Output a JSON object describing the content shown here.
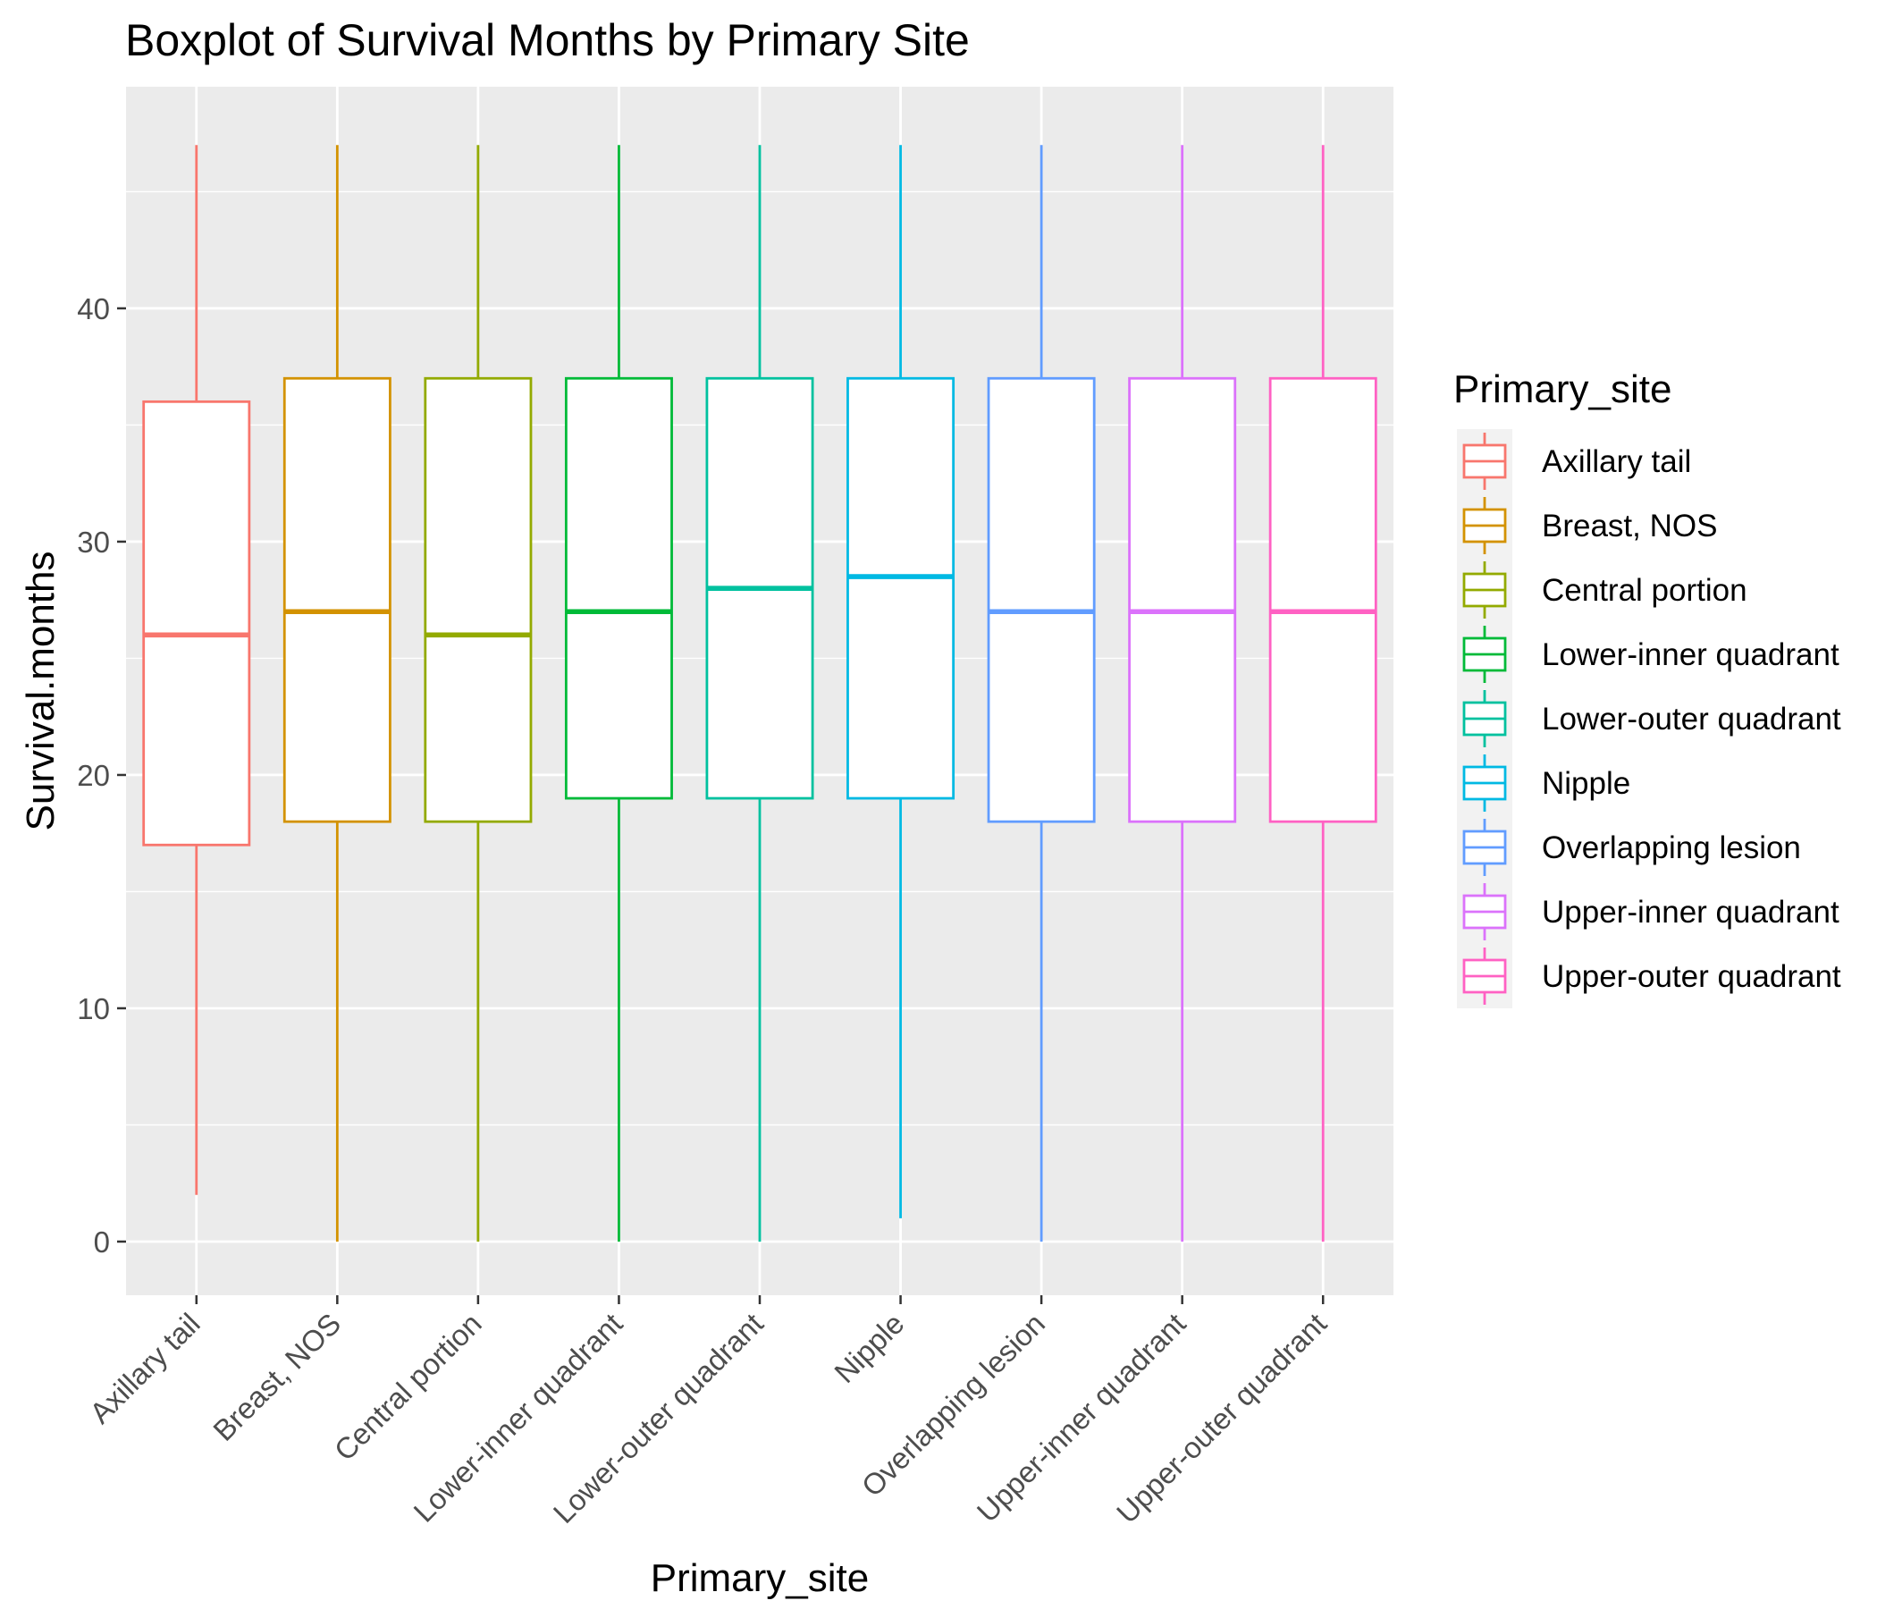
{
  "chart_data": {
    "type": "boxplot",
    "title": "Boxplot of Survival Months by Primary Site",
    "xlabel": "Primary_site",
    "ylabel": "Survival.months",
    "ylim": [
      -2.3,
      49.5
    ],
    "yticks": [
      0,
      10,
      20,
      30,
      40
    ],
    "grid": true,
    "legend": {
      "title": "Primary_site",
      "position": "right"
    },
    "categories": [
      "Axillary tail",
      "Breast, NOS",
      "Central portion",
      "Lower-inner quadrant",
      "Lower-outer quadrant",
      "Nipple",
      "Overlapping lesion",
      "Upper-inner quadrant",
      "Upper-outer quadrant"
    ],
    "colors": [
      "#F8766D",
      "#D39200",
      "#93AA00",
      "#00BA38",
      "#00C19F",
      "#00B9E3",
      "#619CFF",
      "#DB72FB",
      "#FF61C3"
    ],
    "boxes": [
      {
        "min": 2,
        "q1": 17,
        "median": 26,
        "q3": 36,
        "max": 47
      },
      {
        "min": 0,
        "q1": 18,
        "median": 27,
        "q3": 37,
        "max": 47
      },
      {
        "min": 0,
        "q1": 18,
        "median": 26,
        "q3": 37,
        "max": 47
      },
      {
        "min": 0,
        "q1": 19,
        "median": 27,
        "q3": 37,
        "max": 47
      },
      {
        "min": 0,
        "q1": 19,
        "median": 28,
        "q3": 37,
        "max": 47
      },
      {
        "min": 1,
        "q1": 19,
        "median": 28.5,
        "q3": 37,
        "max": 47
      },
      {
        "min": 0,
        "q1": 18,
        "median": 27,
        "q3": 37,
        "max": 47
      },
      {
        "min": 0,
        "q1": 18,
        "median": 27,
        "q3": 37,
        "max": 47
      },
      {
        "min": 0,
        "q1": 18,
        "median": 27,
        "q3": 37,
        "max": 47
      }
    ]
  }
}
